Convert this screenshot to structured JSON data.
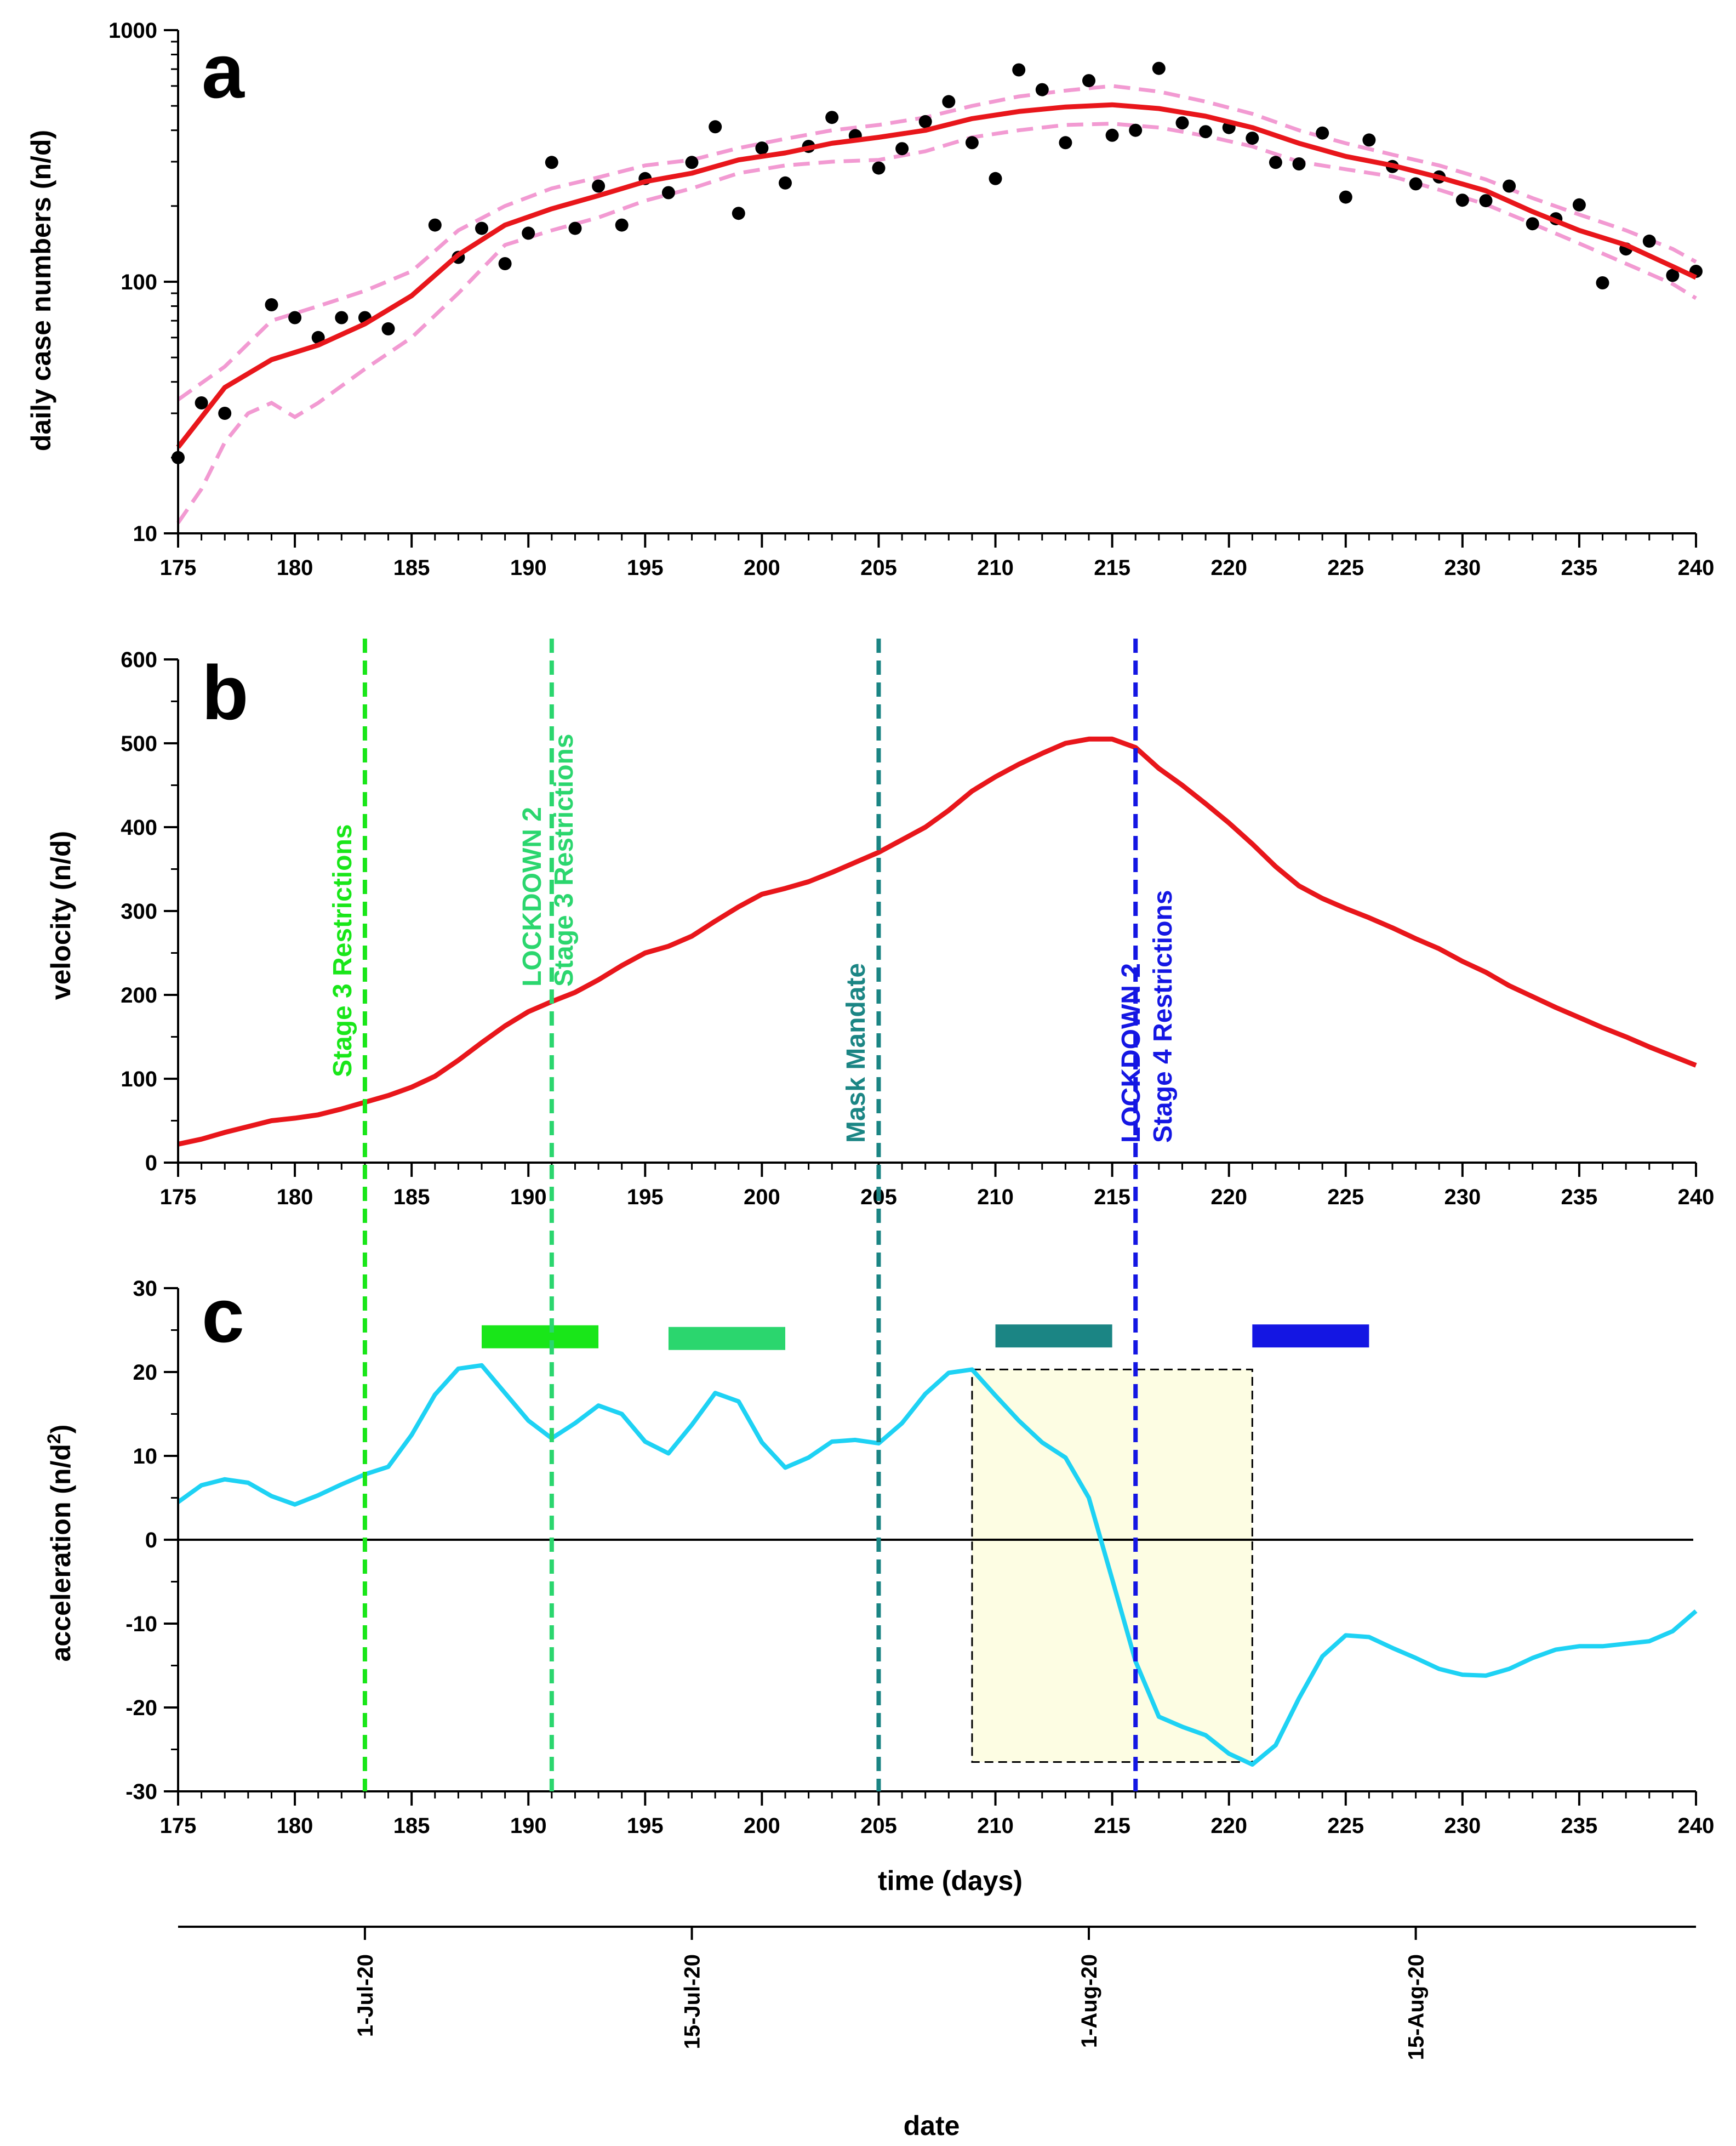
{
  "colors": {
    "fit": "#e8161b",
    "ci": "#f29ad2",
    "points": "#000000",
    "accel": "#1ed2f4",
    "stage3": "#19e619",
    "lockdown2_stage3": "#2bd66e",
    "mask": "#1b8584",
    "stage4": "#1416e3",
    "box_fill": "#fdfde3"
  },
  "chart_data": [
    {
      "panel": "a",
      "type": "scatter",
      "ylabel": "daily case numbers (n/d)",
      "xlim": [
        175,
        240
      ],
      "ylim": [
        10,
        1000
      ],
      "yscale": "log",
      "x_ticks": [
        "175",
        "180",
        "185",
        "190",
        "195",
        "200",
        "205",
        "210",
        "215",
        "220",
        "225",
        "230",
        "235",
        "240"
      ],
      "y_ticks": [
        "10",
        "100",
        "1000"
      ],
      "points": {
        "x": [
          175,
          176,
          177,
          179,
          180,
          181,
          182,
          183,
          184,
          186,
          187,
          188,
          189,
          190,
          191,
          192,
          193,
          194,
          195,
          196,
          197,
          198,
          199,
          200,
          201,
          202,
          203,
          204,
          205,
          206,
          207,
          208,
          209,
          210,
          211,
          212,
          213,
          214,
          215,
          216,
          217,
          218,
          219,
          220,
          221,
          222,
          223,
          224,
          225,
          226,
          227,
          228,
          229,
          230,
          231,
          232,
          233,
          234,
          235,
          236,
          237,
          238,
          239,
          240
        ],
        "y": [
          20,
          33,
          30,
          81,
          72,
          60,
          72,
          72,
          65,
          168,
          125,
          163,
          118,
          156,
          298,
          163,
          240,
          168,
          257,
          226,
          298,
          413,
          187,
          340,
          247,
          345,
          450,
          381,
          283,
          338,
          433,
          520,
          357,
          257,
          695,
          580,
          357,
          630,
          382,
          400,
          705,
          428,
          395,
          410,
          372,
          298,
          294,
          390,
          217,
          366,
          287,
          245,
          261,
          211,
          210,
          240,
          170,
          178,
          202,
          99,
          135,
          145,
          106,
          110
        ]
      },
      "fit": {
        "x": [
          175,
          177,
          179,
          181,
          183,
          185,
          187,
          189,
          191,
          193,
          195,
          197,
          199,
          201,
          203,
          205,
          207,
          209,
          211,
          213,
          215,
          217,
          219,
          221,
          223,
          225,
          227,
          229,
          231,
          233,
          235,
          237,
          239,
          240
        ],
        "y": [
          22,
          38,
          49,
          56,
          68,
          88,
          128,
          168,
          195,
          220,
          250,
          270,
          305,
          325,
          355,
          375,
          400,
          445,
          475,
          495,
          505,
          488,
          455,
          410,
          355,
          315,
          290,
          260,
          230,
          190,
          160,
          140,
          115,
          104
        ]
      },
      "ci_upper": {
        "x": [
          175,
          177,
          179,
          181,
          183,
          185,
          187,
          189,
          191,
          193,
          195,
          197,
          199,
          201,
          203,
          205,
          207,
          209,
          211,
          213,
          215,
          217,
          219,
          221,
          223,
          225,
          227,
          229,
          231,
          233,
          235,
          237,
          239,
          240
        ],
        "y": [
          34,
          46,
          70,
          80,
          92,
          110,
          160,
          200,
          235,
          260,
          290,
          305,
          340,
          370,
          400,
          420,
          450,
          500,
          545,
          575,
          600,
          570,
          520,
          465,
          400,
          355,
          320,
          290,
          255,
          215,
          185,
          160,
          135,
          120
        ]
      },
      "ci_lower": {
        "x": [
          175,
          176,
          177,
          178,
          179,
          180,
          181,
          183,
          185,
          187,
          189,
          191,
          193,
          195,
          197,
          199,
          201,
          203,
          205,
          207,
          209,
          211,
          213,
          215,
          217,
          219,
          221,
          223,
          225,
          227,
          229,
          231,
          233,
          235,
          237,
          239,
          240
        ],
        "y": [
          11,
          15,
          23,
          30,
          33,
          29,
          33,
          45,
          60,
          90,
          140,
          160,
          180,
          210,
          235,
          270,
          290,
          300,
          305,
          330,
          375,
          400,
          420,
          425,
          410,
          380,
          345,
          300,
          280,
          262,
          232,
          203,
          170,
          142,
          118,
          98,
          86
        ]
      }
    },
    {
      "panel": "b",
      "type": "line",
      "ylabel": "velocity (n/d)",
      "xlim": [
        175,
        240
      ],
      "ylim": [
        0,
        600
      ],
      "x_ticks": [
        "175",
        "180",
        "185",
        "190",
        "195",
        "200",
        "205",
        "210",
        "215",
        "220",
        "225",
        "230",
        "235",
        "240"
      ],
      "y_ticks": [
        "0",
        "100",
        "200",
        "300",
        "400",
        "500",
        "600"
      ],
      "series": [
        {
          "name": "velocity",
          "x": [
            175,
            176,
            177,
            178,
            179,
            180,
            181,
            182,
            183,
            184,
            185,
            186,
            187,
            188,
            189,
            190,
            191,
            192,
            193,
            194,
            195,
            196,
            197,
            198,
            199,
            200,
            201,
            202,
            203,
            204,
            205,
            206,
            207,
            208,
            209,
            210,
            211,
            212,
            213,
            214,
            215,
            216,
            217,
            218,
            219,
            220,
            221,
            222,
            223,
            224,
            225,
            226,
            227,
            228,
            229,
            230,
            231,
            232,
            233,
            234,
            235,
            236,
            237,
            238,
            239,
            240
          ],
          "y": [
            22,
            28,
            36,
            43,
            50,
            53,
            57,
            64,
            72,
            80,
            90,
            103,
            122,
            143,
            163,
            180,
            192,
            203,
            218,
            235,
            250,
            258,
            270,
            288,
            305,
            320,
            327,
            335,
            346,
            358,
            370,
            385,
            400,
            420,
            443,
            460,
            475,
            488,
            500,
            505,
            505,
            495,
            470,
            450,
            428,
            405,
            380,
            353,
            330,
            315,
            303,
            292,
            280,
            267,
            255,
            240,
            227,
            211,
            198,
            185,
            173,
            161,
            150,
            138,
            127,
            116
          ]
        }
      ],
      "events": [
        {
          "x": 183,
          "lines": [
            "Stage 3 Restrictions"
          ]
        },
        {
          "x": 191,
          "lines": [
            "LOCKDOWN 2",
            "Stage 3 Restrictions"
          ]
        },
        {
          "x": 205,
          "lines": [
            "Mask Mandate"
          ]
        },
        {
          "x": 216,
          "lines": [
            "LOCKDOWN 2",
            "Stage 4 Restrictions"
          ]
        }
      ]
    },
    {
      "panel": "c",
      "type": "line",
      "ylabel": "acceleration (n/d",
      "ylabel_sup": "2",
      "ylabel_end": ")",
      "xlabel": "time (days)",
      "xlim": [
        175,
        240
      ],
      "ylim": [
        -30,
        30
      ],
      "x_ticks": [
        "175",
        "180",
        "185",
        "190",
        "195",
        "200",
        "205",
        "210",
        "215",
        "220",
        "225",
        "230",
        "235",
        "240"
      ],
      "y_ticks": [
        "-30",
        "-20",
        "-10",
        "0",
        "10",
        "20",
        "30"
      ],
      "series": [
        {
          "name": "acceleration",
          "x": [
            175,
            176,
            177,
            178,
            179,
            180,
            181,
            182,
            183,
            184,
            185,
            186,
            187,
            188,
            189,
            190,
            191,
            192,
            193,
            194,
            195,
            196,
            197,
            198,
            199,
            200,
            201,
            202,
            203,
            204,
            205,
            206,
            207,
            208,
            209,
            210,
            211,
            212,
            213,
            214,
            215,
            216,
            217,
            218,
            219,
            220,
            221,
            222,
            223,
            224,
            225,
            226,
            227,
            228,
            229,
            230,
            231,
            232,
            233,
            234,
            235,
            236,
            237,
            238,
            239,
            240
          ],
          "y": [
            4.5,
            6.5,
            7.2,
            6.8,
            5.2,
            4.2,
            5.3,
            6.6,
            7.8,
            8.7,
            12.5,
            17.3,
            20.4,
            20.8,
            17.5,
            14.2,
            12.1,
            13.9,
            16.0,
            15.0,
            11.7,
            10.3,
            13.7,
            17.5,
            16.5,
            11.6,
            8.6,
            9.8,
            11.7,
            11.9,
            11.5,
            13.9,
            17.4,
            19.9,
            20.3,
            17.2,
            14.2,
            11.6,
            9.8,
            5.0,
            -4.7,
            -14.5,
            -21.1,
            -22.3,
            -23.3,
            -25.5,
            -26.8,
            -24.5,
            -18.9,
            -13.9,
            -11.4,
            -11.6,
            -12.9,
            -14.1,
            -15.4,
            -16.1,
            -16.2,
            -15.4,
            -14.1,
            -13.1,
            -12.7,
            -12.7,
            -12.4,
            -12.1,
            -10.9,
            -8.5
          ]
        }
      ],
      "zero_line": 0,
      "shaded_box": {
        "x": [
          209,
          221
        ],
        "y": [
          -26.5,
          20.3
        ]
      },
      "duration_bars": [
        {
          "x": [
            188,
            193
          ],
          "y": 24.2,
          "color_key": "stage3"
        },
        {
          "x": [
            196,
            201
          ],
          "y": 24.0,
          "color_key": "lockdown2_stage3"
        },
        {
          "x": [
            210,
            215
          ],
          "y": 24.3,
          "color_key": "mask"
        },
        {
          "x": [
            221,
            226
          ],
          "y": 24.3,
          "color_key": "stage4"
        }
      ]
    }
  ],
  "date_axis": {
    "xlabel": "date",
    "labels": [
      {
        "label": "1-Jul-20",
        "day": 183
      },
      {
        "label": "15-Jul-20",
        "day": 197
      },
      {
        "label": "1-Aug-20",
        "day": 214
      },
      {
        "label": "15-Aug-20",
        "day": 228
      }
    ]
  }
}
